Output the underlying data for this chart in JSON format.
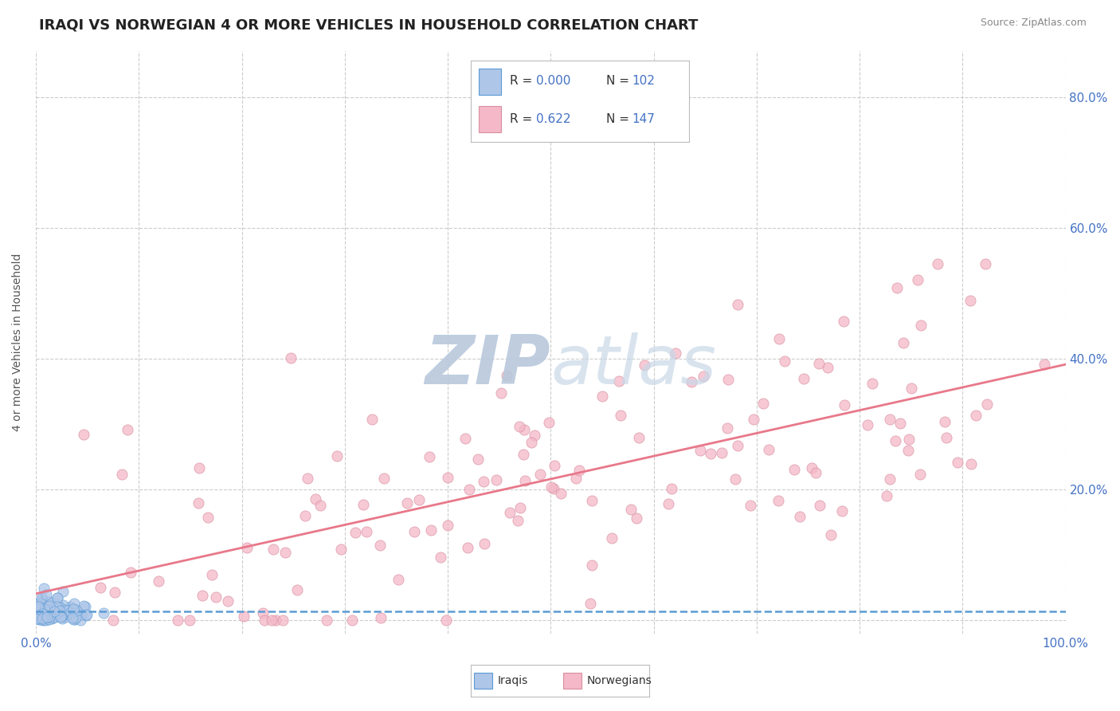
{
  "title": "IRAQI VS NORWEGIAN 4 OR MORE VEHICLES IN HOUSEHOLD CORRELATION CHART",
  "source": "Source: ZipAtlas.com",
  "ylabel": "4 or more Vehicles in Household",
  "xlim": [
    0.0,
    1.0
  ],
  "ylim": [
    -0.02,
    0.87
  ],
  "xticks": [
    0.0,
    0.1,
    0.2,
    0.3,
    0.4,
    0.5,
    0.6,
    0.7,
    0.8,
    0.9,
    1.0
  ],
  "xticklabels": [
    "0.0%",
    "",
    "",
    "",
    "",
    "",
    "",
    "",
    "",
    "",
    "100.0%"
  ],
  "ytick_positions": [
    0.0,
    0.2,
    0.4,
    0.6,
    0.8
  ],
  "yticklabels": [
    "",
    "20.0%",
    "40.0%",
    "60.0%",
    "80.0%"
  ],
  "iraqi_R": 0.0,
  "iraqi_N": 102,
  "norwegian_R": 0.622,
  "norwegian_N": 147,
  "iraqi_color": "#aec6e8",
  "norwegian_color": "#f4b8c8",
  "iraqi_line_color": "#5b9bd5",
  "norwegian_line_color": "#e8788a",
  "watermark_color": "#cdd8e8",
  "background_color": "#ffffff",
  "grid_color": "#cccccc",
  "title_fontsize": 13,
  "axis_label_fontsize": 10,
  "tick_fontsize": 11,
  "text_color": "#4472c4",
  "label_color": "#555555"
}
